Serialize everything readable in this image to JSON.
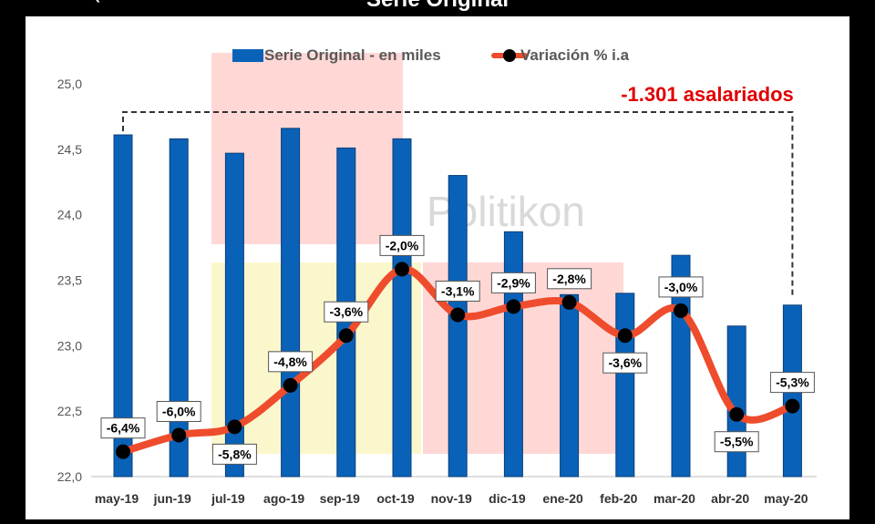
{
  "chart_data": {
    "type": "bar+line",
    "title": "Serie Original",
    "corner_mark": "‹",
    "watermark": "Politikon",
    "categories": [
      "may-19",
      "jun-19",
      "jul-19",
      "ago-19",
      "sep-19",
      "oct-19",
      "nov-19",
      "dic-19",
      "ene-20",
      "feb-20",
      "mar-20",
      "abr-20",
      "may-20"
    ],
    "series": [
      {
        "name": "Serie Original - en miles",
        "type": "bar",
        "axis": "left",
        "values": [
          24.61,
          24.58,
          24.47,
          24.66,
          24.51,
          24.58,
          24.3,
          23.87,
          23.39,
          23.4,
          23.69,
          23.15,
          23.31
        ]
      },
      {
        "name": "Variación % i.a",
        "type": "line",
        "axis": "right",
        "values": [
          -6.4,
          -6.0,
          -5.8,
          -4.8,
          -3.6,
          -2.0,
          -3.1,
          -2.9,
          -2.8,
          -3.6,
          -3.0,
          -5.5,
          -5.3
        ],
        "labels": [
          "-6,4%",
          "-6,0%",
          "-5,8%",
          "-4,8%",
          "-3,6%",
          "-2,0%",
          "-3,1%",
          "-2,9%",
          "-2,8%",
          "-3,6%",
          "-3,0%",
          "-5,5%",
          "-5,3%"
        ]
      }
    ],
    "yaxis": {
      "min": 22.0,
      "max": 25.0,
      "step": 0.5,
      "tick_labels": [
        "22,0",
        "22,5",
        "23,0",
        "23,5",
        "24,0",
        "24,5",
        "25,0"
      ]
    },
    "line_scale": {
      "min": -7.0,
      "max": -0.3
    },
    "annotation": {
      "text": "-1.301 asalariados",
      "from": "may-19",
      "to": "may-20"
    },
    "colors": {
      "bar": "#0a62b8",
      "bar_edge": "#0a3d78",
      "line": "#ee4c2c",
      "marker": "#000000",
      "annotation": "#e00000",
      "axis_text": "#555555",
      "category_text": "#333333"
    }
  }
}
